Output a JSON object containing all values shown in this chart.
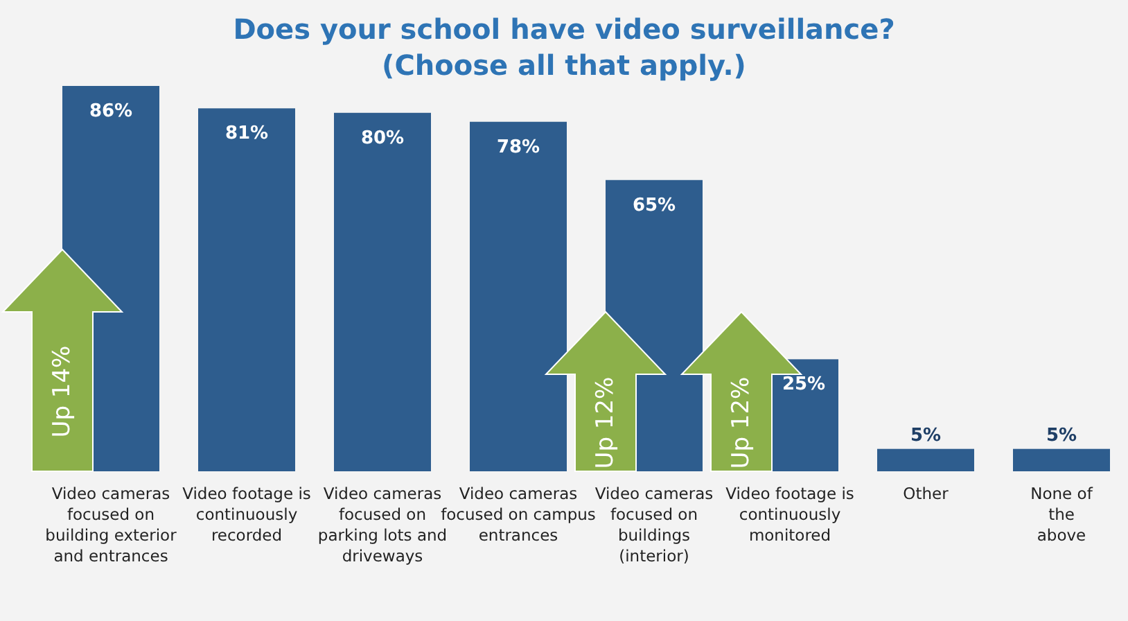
{
  "chart_data": {
    "type": "bar",
    "title": "Does your school have video surveillance?\n(Choose all that apply.)",
    "categories": [
      "Video cameras focused on building exterior and entrances",
      "Video footage is continuously recorded",
      "Video cameras focused on parking lots and driveways",
      "Video cameras focused on campus entrances",
      "Video cameras focused on buildings (interior)",
      "Video footage is continuously monitored",
      "Other",
      "None of the above"
    ],
    "values": [
      86,
      81,
      80,
      78,
      65,
      25,
      5,
      5
    ],
    "color": "#2e5d8e",
    "value_labels": [
      "86%",
      "81%",
      "80%",
      "78%",
      "65%",
      "25%",
      "5%",
      "5%"
    ],
    "annotations": [
      "Up 14%",
      "Up 12%",
      "Up 12%"
    ]
  }
}
